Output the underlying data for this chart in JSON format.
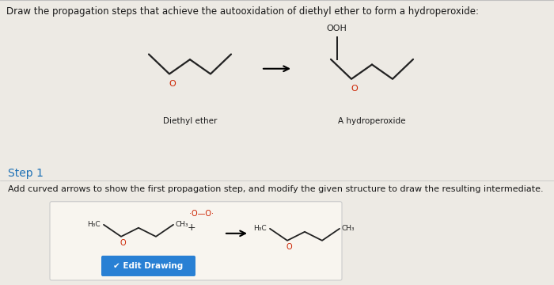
{
  "title_text": "Draw the propagation steps that achieve the autooxidation of diethyl ether to form a hydroperoxide:",
  "title_fontsize": 8.5,
  "title_color": "#1a1a1a",
  "bg_color_top": "#edeae4",
  "bg_color_bottom": "#cdd8e8",
  "step1_label": "Step 1",
  "step1_color": "#1a6fb5",
  "step1_fontsize": 10,
  "diethyl_label": "Diethyl ether",
  "hydro_label": "A hydroperoxide",
  "ooh_label": "OOH",
  "label_fontsize": 7.5,
  "add_text": "Add curved arrows to show the first propagation step, and modify the given structure to draw the resulting intermediate.",
  "add_fontsize": 8,
  "edit_btn_text": "✔ Edit Drawing",
  "edit_btn_color": "#2980d4",
  "edit_btn_fontsize": 7.5,
  "o_color": "#cc2200",
  "struct_color": "#222222",
  "box_bg": "#f5f2ec",
  "box_edge": "#cccccc",
  "divider_color": "#c0c0c0"
}
